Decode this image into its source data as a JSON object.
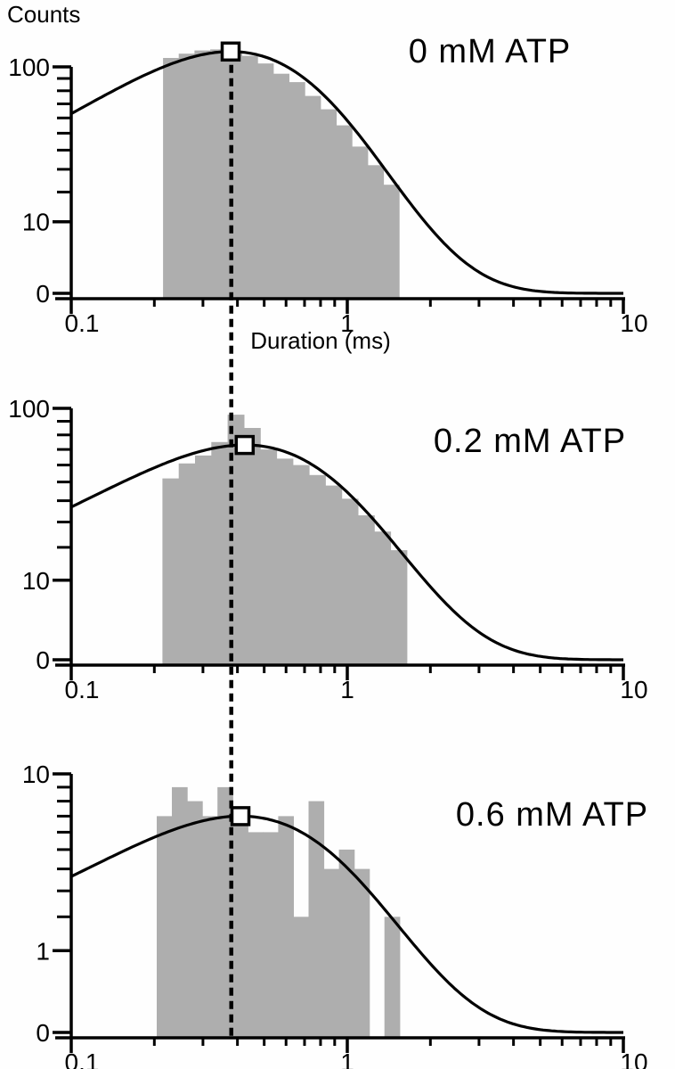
{
  "figure": {
    "ylabel": "Counts",
    "xlabel": "Duration (ms)",
    "colors": {
      "bar": "#aeaeae",
      "line": "#000000",
      "background": "#fefefe",
      "marker_fill": "#ffffff"
    },
    "dashed_reference_line": {
      "x_ms": 0.38
    }
  },
  "chart_data": [
    {
      "type": "bar",
      "subtype": "dwell-time histogram with fit",
      "title": "0 mM ATP",
      "xlabel": "Duration (ms)",
      "ylabel": "Counts",
      "xscale": "log",
      "xlim": [
        0.1,
        10
      ],
      "yscale": "sqrt",
      "y_max_value": 100,
      "xtick_labels": [
        "0.1",
        "1",
        "10"
      ],
      "xtick_values": [
        0.1,
        1,
        10
      ],
      "ytick_labels": [
        "100",
        "10",
        "0"
      ],
      "ytick_values": [
        100,
        10,
        0
      ],
      "bins": {
        "first_bin_start_ms": 0.215,
        "bin_width_log10": 0.057,
        "counts": [
          108,
          112,
          115,
          116,
          114,
          110,
          103,
          94,
          87,
          76,
          66,
          55,
          42,
          32,
          23
        ]
      },
      "fit_curve": {
        "model": "log-binned exponential",
        "tau_ms": 0.378,
        "peak_counts": 114
      },
      "peak_marker": {
        "x_ms": 0.378,
        "counts": 114,
        "shape": "open-square"
      }
    },
    {
      "type": "bar",
      "subtype": "dwell-time histogram with fit",
      "title": "0.2 mM ATP",
      "xlabel": "Duration (ms)",
      "ylabel": "Counts",
      "xscale": "log",
      "xlim": [
        0.1,
        10
      ],
      "yscale": "sqrt",
      "y_max_value": 100,
      "xtick_labels": [
        "0.1",
        "1",
        "10"
      ],
      "xtick_values": [
        0.1,
        1,
        10
      ],
      "ytick_labels": [
        "100",
        "10",
        "0"
      ],
      "ytick_values": [
        100,
        10,
        0
      ],
      "bins": {
        "first_bin_start_ms": 0.214,
        "bin_width_log10": 0.059,
        "counts": [
          52,
          61,
          66,
          75,
          95,
          85,
          70,
          64,
          60,
          54,
          48,
          41,
          33,
          26,
          19
        ]
      },
      "fit_curve": {
        "model": "log-binned exponential",
        "tau_ms": 0.425,
        "peak_counts": 73
      },
      "peak_marker": {
        "x_ms": 0.425,
        "counts": 73,
        "shape": "open-square"
      }
    },
    {
      "type": "bar",
      "subtype": "dwell-time histogram with fit",
      "title": "0.6 mM ATP",
      "xlabel": "Duration (ms)",
      "ylabel": "Counts",
      "xscale": "log",
      "xlim": [
        0.1,
        10
      ],
      "yscale": "sqrt",
      "y_max_value": 10,
      "xtick_labels": [
        "0.1",
        "1",
        "10"
      ],
      "xtick_values": [
        0.1,
        1,
        10
      ],
      "ytick_labels": [
        "10",
        "1",
        "0"
      ],
      "ytick_values": [
        10,
        1,
        0
      ],
      "bins": {
        "first_bin_start_ms": 0.204,
        "bin_width_log10": 0.055,
        "counts": [
          7,
          9,
          8,
          7,
          9,
          7,
          6,
          6,
          7,
          2,
          8,
          4,
          5,
          4,
          0,
          2
        ]
      },
      "fit_curve": {
        "model": "log-binned exponential",
        "tau_ms": 0.41,
        "peak_counts": 7
      },
      "peak_marker": {
        "x_ms": 0.41,
        "counts": 7,
        "shape": "open-square"
      }
    }
  ]
}
